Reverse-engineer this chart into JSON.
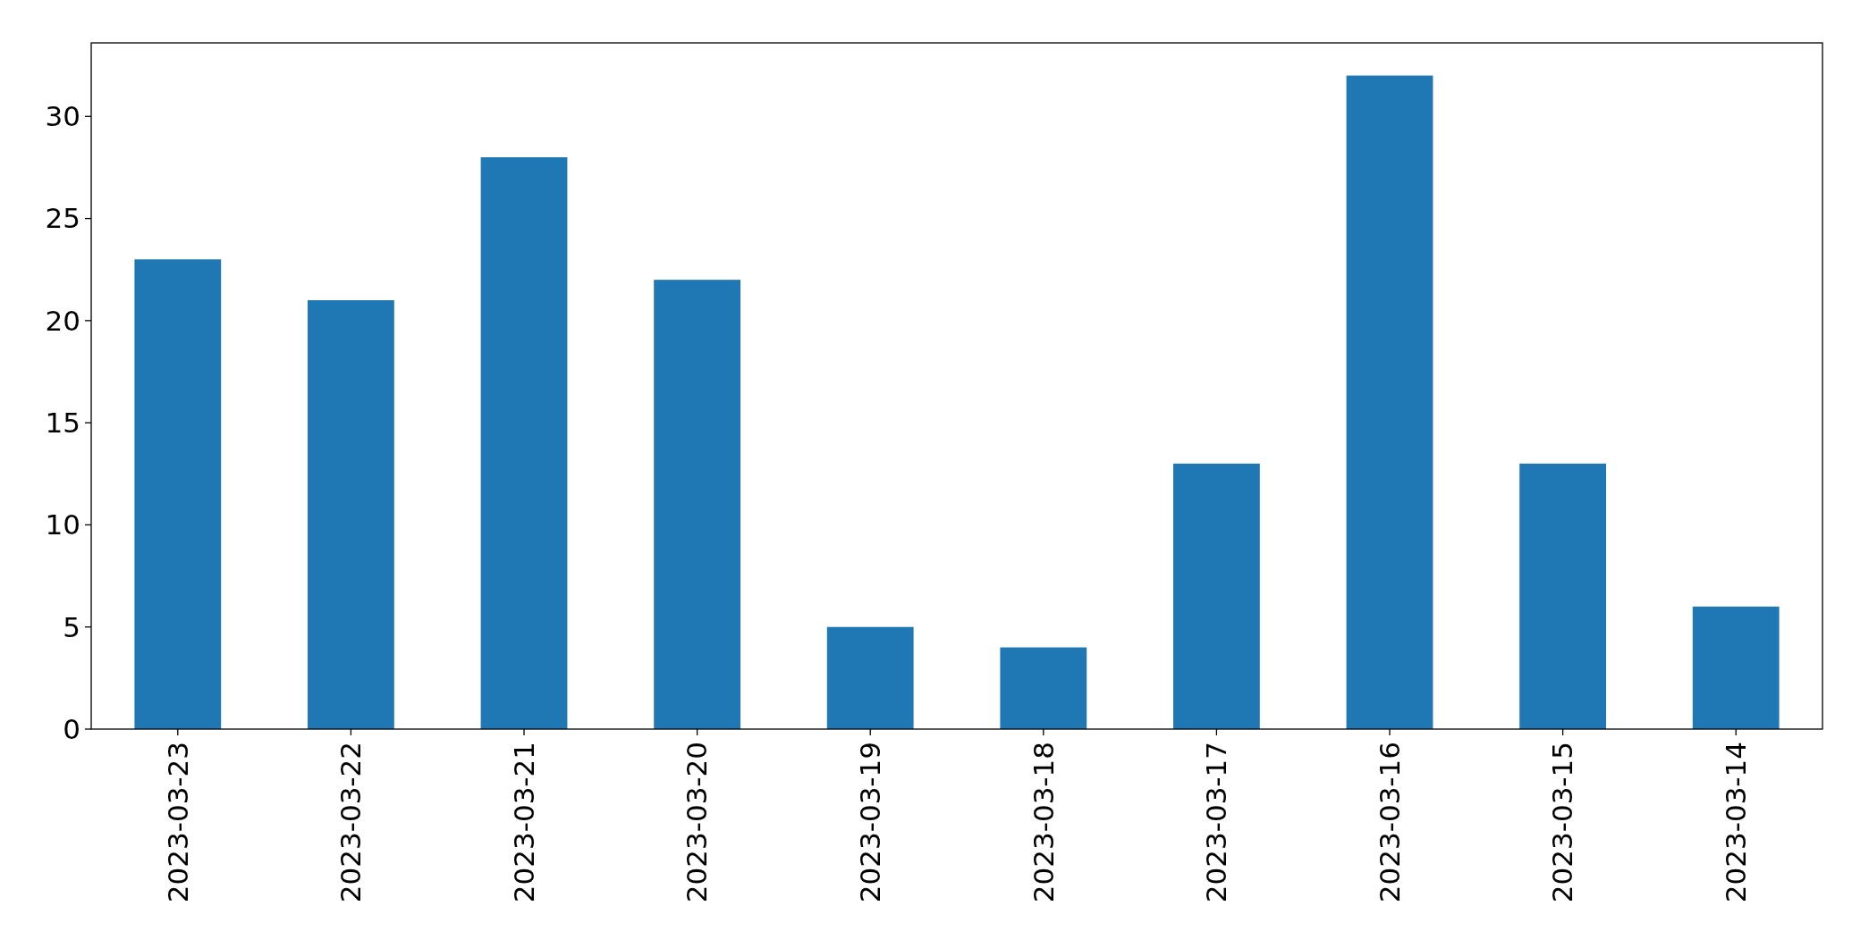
{
  "chart_data": {
    "type": "bar",
    "categories": [
      "2023-03-23",
      "2023-03-22",
      "2023-03-21",
      "2023-03-20",
      "2023-03-19",
      "2023-03-18",
      "2023-03-17",
      "2023-03-16",
      "2023-03-15",
      "2023-03-14"
    ],
    "values": [
      23,
      21,
      28,
      22,
      5,
      4,
      13,
      32,
      13,
      6
    ],
    "color": "#1f77b4",
    "ylim": [
      0,
      33.6
    ],
    "yticks": [
      0,
      5,
      10,
      15,
      20,
      25,
      30
    ],
    "grid": false
  }
}
